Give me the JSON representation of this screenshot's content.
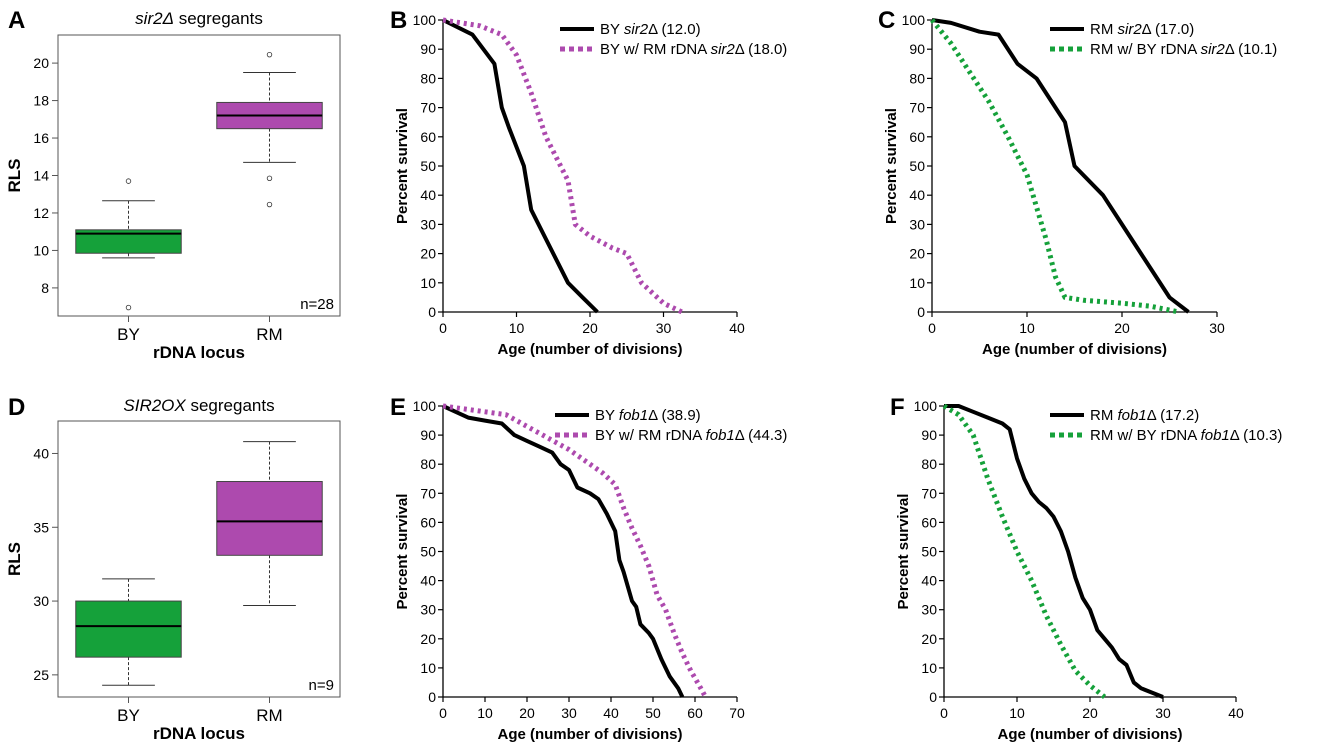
{
  "chart_data": [
    {
      "panel": "A",
      "type": "box",
      "title_italic": "sir2Δ",
      "title_rest": " segregants",
      "xlabel": "rDNA locus",
      "ylabel": "RLS",
      "ylim": [
        6.5,
        21.5
      ],
      "yticks": [
        8,
        10,
        12,
        14,
        16,
        18,
        20
      ],
      "n_label": "n=28",
      "colors": {
        "BY": "#15a13a",
        "RM": "#ad4aae"
      },
      "boxes": [
        {
          "label": "BY",
          "min": 9.6,
          "q1": 9.85,
          "median": 10.9,
          "q3": 11.1,
          "max": 12.65,
          "outliers": [
            13.7,
            6.95
          ]
        },
        {
          "label": "RM",
          "min": 14.7,
          "q1": 16.5,
          "median": 17.2,
          "q3": 17.9,
          "max": 19.5,
          "outliers": [
            20.45,
            13.85,
            12.45
          ]
        }
      ]
    },
    {
      "panel": "B",
      "type": "line",
      "xlabel": "Age (number of divisions)",
      "ylabel": "Percent survival",
      "xlim": [
        0,
        40
      ],
      "ylim": [
        0,
        100
      ],
      "xticks": [
        0,
        10,
        20,
        30,
        40
      ],
      "yticks": [
        0,
        10,
        20,
        30,
        40,
        50,
        60,
        70,
        80,
        90,
        100
      ],
      "series": [
        {
          "legend_pre": "BY ",
          "legend_it": "sir2",
          "legend_post": "Δ (12.0)",
          "color": "#000000",
          "dashed": false,
          "x": [
            0,
            4,
            7,
            8,
            9,
            11,
            12,
            14,
            17,
            19,
            21
          ],
          "y": [
            100,
            95,
            85,
            70,
            63,
            50,
            35,
            25,
            10,
            5,
            0
          ]
        },
        {
          "legend_pre": "BY w/ RM rDNA ",
          "legend_it": "sir2",
          "legend_post": "Δ (18.0)",
          "color": "#ad4aae",
          "dashed": true,
          "x": [
            0,
            5,
            8,
            10,
            12,
            14,
            16,
            17,
            18,
            20,
            23,
            25,
            27,
            30,
            32.5
          ],
          "y": [
            100,
            98,
            95,
            88,
            75,
            60,
            50,
            45,
            30,
            26,
            22,
            20,
            10,
            3,
            0
          ]
        }
      ]
    },
    {
      "panel": "C",
      "type": "line",
      "xlabel": "Age (number of divisions)",
      "ylabel": "Percent survival",
      "xlim": [
        0,
        30
      ],
      "ylim": [
        0,
        100
      ],
      "xticks": [
        0,
        10,
        20,
        30
      ],
      "yticks": [
        0,
        10,
        20,
        30,
        40,
        50,
        60,
        70,
        80,
        90,
        100
      ],
      "series": [
        {
          "legend_pre": "RM ",
          "legend_it": "sir2",
          "legend_post": "Δ (17.0)",
          "color": "#000000",
          "dashed": false,
          "x": [
            0,
            2,
            5,
            7,
            9,
            11,
            13,
            14,
            15,
            18,
            20,
            22,
            25,
            27
          ],
          "y": [
            100,
            99,
            96,
            95,
            85,
            80,
            70,
            65,
            50,
            40,
            30,
            20,
            5,
            0
          ]
        },
        {
          "legend_pre": "RM w/ BY rDNA ",
          "legend_it": "sir2",
          "legend_post": "Δ (10.1)",
          "color": "#15a13a",
          "dashed": true,
          "x": [
            0,
            2,
            4,
            6,
            8,
            10,
            12,
            13,
            14,
            16,
            20,
            23,
            26
          ],
          "y": [
            100,
            92,
            82,
            72,
            60,
            47,
            25,
            12,
            5,
            4,
            3,
            2,
            0
          ]
        }
      ]
    },
    {
      "panel": "D",
      "type": "box",
      "title_italic": "SIR2OX",
      "title_rest": " segregants",
      "xlabel": "rDNA locus",
      "ylabel": "RLS",
      "ylim": [
        23.5,
        42.2
      ],
      "yticks": [
        25,
        30,
        35,
        40
      ],
      "n_label": "n=9",
      "colors": {
        "BY": "#15a13a",
        "RM": "#ad4aae"
      },
      "boxes": [
        {
          "label": "BY",
          "min": 24.3,
          "q1": 26.2,
          "median": 28.3,
          "q3": 30.0,
          "max": 31.5,
          "outliers": []
        },
        {
          "label": "RM",
          "min": 29.7,
          "q1": 33.1,
          "median": 35.4,
          "q3": 38.1,
          "max": 40.8,
          "outliers": []
        }
      ]
    },
    {
      "panel": "E",
      "type": "line",
      "xlabel": "Age (number of divisions)",
      "ylabel": "Percent survival",
      "xlim": [
        0,
        70
      ],
      "ylim": [
        0,
        100
      ],
      "xticks": [
        0,
        10,
        20,
        30,
        40,
        50,
        60,
        70
      ],
      "yticks": [
        0,
        10,
        20,
        30,
        40,
        50,
        60,
        70,
        80,
        90,
        100
      ],
      "series": [
        {
          "legend_pre": "BY ",
          "legend_it": "fob1",
          "legend_post": "Δ (38.9)",
          "color": "#000000",
          "dashed": false,
          "x": [
            0,
            3,
            6,
            10,
            14,
            17,
            20,
            23,
            26,
            28,
            30,
            32,
            35,
            37,
            39,
            41,
            42,
            43,
            45,
            46,
            47,
            49,
            50,
            52,
            54,
            56,
            57
          ],
          "y": [
            100,
            98,
            96,
            95,
            94,
            90,
            88,
            86,
            84,
            80,
            78,
            72,
            70,
            68,
            63,
            57,
            47,
            43,
            33,
            31,
            25,
            22,
            20,
            13,
            7,
            3,
            0
          ]
        },
        {
          "legend_pre": "BY w/ RM rDNA ",
          "legend_it": "fob1",
          "legend_post": "Δ (44.3)",
          "color": "#ad4aae",
          "dashed": true,
          "x": [
            0,
            5,
            10,
            15,
            20,
            25,
            30,
            35,
            38,
            41,
            43,
            45,
            47,
            49,
            51,
            53,
            55,
            57,
            59,
            61,
            62.5
          ],
          "y": [
            100,
            99,
            98,
            97,
            93,
            89,
            85,
            80,
            77,
            73,
            65,
            58,
            52,
            45,
            35,
            30,
            22,
            15,
            9,
            4,
            0
          ]
        }
      ]
    },
    {
      "panel": "F",
      "type": "line",
      "xlabel": "Age (number of divisions)",
      "ylabel": "Percent survival",
      "xlim": [
        0,
        40
      ],
      "ylim": [
        0,
        100
      ],
      "xticks": [
        0,
        10,
        20,
        30,
        40
      ],
      "yticks": [
        0,
        10,
        20,
        30,
        40,
        50,
        60,
        70,
        80,
        90,
        100
      ],
      "series": [
        {
          "legend_pre": "RM ",
          "legend_it": "fob1",
          "legend_post": "Δ (17.2)",
          "color": "#000000",
          "dashed": false,
          "x": [
            0,
            2,
            4,
            6,
            8,
            9,
            10,
            11,
            12,
            13,
            14,
            15,
            16,
            17,
            18,
            19,
            20,
            21,
            22,
            23,
            24,
            25,
            26,
            27,
            30
          ],
          "y": [
            100,
            100,
            98,
            96,
            94,
            92,
            82,
            75,
            70,
            67,
            65,
            62,
            57,
            50,
            41,
            34,
            30,
            23,
            20,
            17,
            13,
            11,
            5,
            3,
            0
          ]
        },
        {
          "legend_pre": "RM w/ BY rDNA ",
          "legend_it": "fob1",
          "legend_post": "Δ (10.3)",
          "color": "#15a13a",
          "dashed": true,
          "x": [
            0,
            2,
            4,
            6,
            8,
            10,
            12,
            14,
            16,
            18,
            20,
            22
          ],
          "y": [
            100,
            97,
            90,
            75,
            62,
            50,
            40,
            28,
            18,
            9,
            4,
            0
          ]
        }
      ]
    }
  ]
}
